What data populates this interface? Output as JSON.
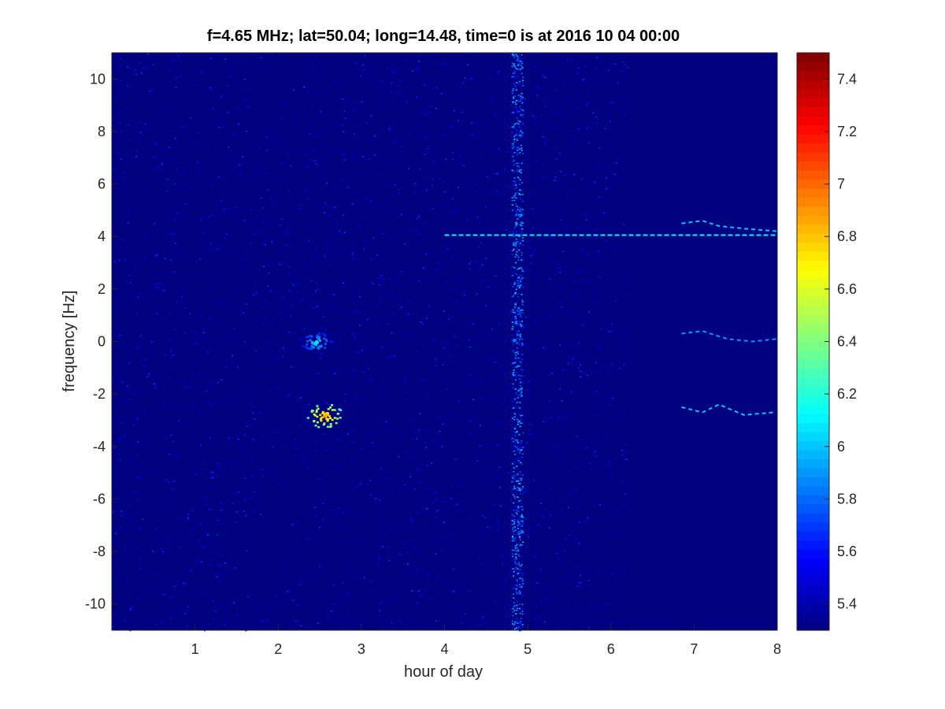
{
  "chart_data": {
    "type": "heatmap",
    "title": "f=4.65 MHz;  lat=50.04; long=14.48, time=0 is at 2016 10 04 00:00",
    "xlabel": "hour of day",
    "ylabel": "frequency [Hz]",
    "xlim": [
      0,
      8
    ],
    "ylim": [
      -11,
      11
    ],
    "x_ticks": [
      1,
      2,
      3,
      4,
      5,
      6,
      7,
      8
    ],
    "y_ticks": [
      -10,
      -8,
      -6,
      -4,
      -2,
      0,
      2,
      4,
      6,
      8,
      10
    ],
    "colorbar": {
      "range": [
        5.3,
        7.5
      ],
      "ticks": [
        5.4,
        5.6,
        5.8,
        6,
        6.2,
        6.4,
        6.6,
        6.8,
        7,
        7.2,
        7.4
      ],
      "colormap": "jet"
    },
    "background_value": 5.3,
    "features": [
      {
        "kind": "noise-band",
        "x_range": [
          0,
          6.2
        ],
        "intensity": 5.5
      },
      {
        "kind": "bright-column",
        "x": 4.87,
        "intensity": 5.8
      },
      {
        "kind": "horizontal-line",
        "y": 4.05,
        "x_range": [
          4.0,
          8.0
        ],
        "intensity": 6.1
      },
      {
        "kind": "trace",
        "points": [
          [
            6.85,
            4.5
          ],
          [
            7.1,
            4.6
          ],
          [
            7.3,
            4.4
          ],
          [
            7.6,
            4.3
          ],
          [
            8.0,
            4.2
          ]
        ],
        "intensity": 6.0
      },
      {
        "kind": "trace",
        "points": [
          [
            6.85,
            0.3
          ],
          [
            7.1,
            0.4
          ],
          [
            7.4,
            0.1
          ],
          [
            7.7,
            0.0
          ],
          [
            8.0,
            0.1
          ]
        ],
        "intensity": 5.9
      },
      {
        "kind": "trace",
        "points": [
          [
            6.85,
            -2.5
          ],
          [
            7.1,
            -2.7
          ],
          [
            7.3,
            -2.4
          ],
          [
            7.6,
            -2.8
          ],
          [
            7.95,
            -2.7
          ]
        ],
        "intensity": 6.0
      },
      {
        "kind": "blob",
        "x": 2.45,
        "y": 0.0,
        "intensity": 6.1
      },
      {
        "kind": "blob",
        "x": 2.55,
        "y": -2.8,
        "intensity": 6.9
      }
    ]
  }
}
